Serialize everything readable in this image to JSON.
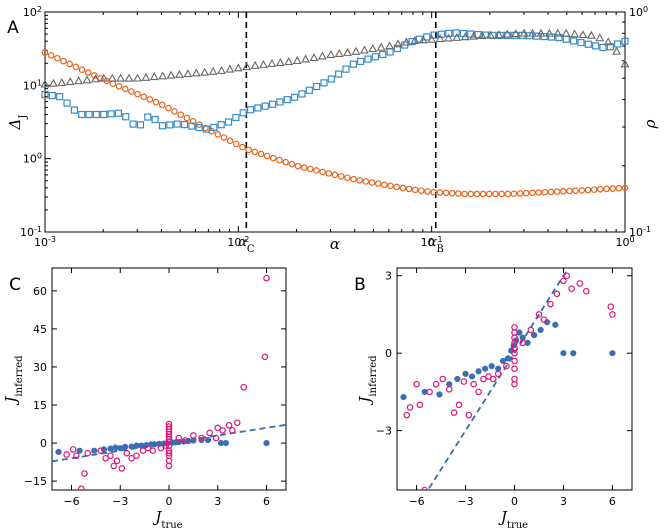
{
  "chart_data": [
    {
      "id": "A",
      "panel_label": "A",
      "type": "scatter",
      "x_scale": "log",
      "xlim": [
        0.001,
        1
      ],
      "xlabel": "α",
      "x_ticks": [
        {
          "value": 0.001,
          "base": "10",
          "exp": "-3"
        },
        {
          "value": 0.01,
          "base": "10",
          "exp": "-2"
        },
        {
          "value": 0.1,
          "base": "10",
          "exp": "-1"
        },
        {
          "value": 1,
          "base": "10",
          "exp": "0"
        }
      ],
      "y_left": {
        "label": "Δ",
        "label_sub": "J",
        "scale": "log",
        "lim": [
          0.1,
          100
        ],
        "ticks": [
          {
            "value": 0.1,
            "base": "10",
            "exp": "-1"
          },
          {
            "value": 1,
            "base": "10",
            "exp": "0"
          },
          {
            "value": 10,
            "base": "10",
            "exp": "1"
          },
          {
            "value": 100,
            "base": "10",
            "exp": "2"
          }
        ]
      },
      "y_right": {
        "label": "ρ",
        "scale": "log",
        "lim": [
          0.1,
          1
        ],
        "ticks": [
          {
            "value": 0.1,
            "base": "10",
            "exp": "-1"
          },
          {
            "value": 1,
            "base": "10",
            "exp": "0"
          }
        ]
      },
      "vlines": [
        {
          "x": 0.011,
          "label": "α",
          "label_sub": "C"
        },
        {
          "x": 0.105,
          "label": "α",
          "label_sub": "B"
        }
      ],
      "series": [
        {
          "name": "orange circles",
          "marker": "circle",
          "color": "#e8641b",
          "axis": "left",
          "x": [
            0.001,
            0.002,
            0.004,
            0.007,
            0.011,
            0.02,
            0.04,
            0.07,
            0.1,
            0.15,
            0.25,
            0.4,
            0.6,
            1.0
          ],
          "y": [
            28,
            12,
            5.5,
            2.5,
            1.35,
            0.8,
            0.52,
            0.4,
            0.35,
            0.33,
            0.33,
            0.35,
            0.37,
            0.4
          ]
        },
        {
          "name": "blue squares",
          "marker": "square",
          "color": "#3a8cc4",
          "axis": "left",
          "x": [
            0.001,
            0.0012,
            0.0015,
            0.002,
            0.0025,
            0.003,
            0.0035,
            0.004,
            0.005,
            0.007,
            0.009,
            0.011,
            0.015,
            0.02,
            0.03,
            0.04,
            0.06,
            0.08,
            0.1,
            0.13,
            0.2,
            0.3,
            0.45,
            0.6,
            0.8,
            1.0
          ],
          "y": [
            7.5,
            7.0,
            4.0,
            4.0,
            4.2,
            2.6,
            4.0,
            2.8,
            3.0,
            2.5,
            3.2,
            4.5,
            5.5,
            7.0,
            12,
            20,
            28,
            40,
            48,
            52,
            48,
            48,
            45,
            38,
            32,
            40
          ]
        },
        {
          "name": "gray triangles",
          "marker": "triangle",
          "color": "#666666",
          "axis": "right",
          "x": [
            0.001,
            0.0013,
            0.002,
            0.003,
            0.005,
            0.008,
            0.012,
            0.02,
            0.03,
            0.04,
            0.06,
            0.08,
            0.12,
            0.18,
            0.3,
            0.5,
            0.7,
            0.85,
            1.0
          ],
          "y": [
            0.47,
            0.48,
            0.5,
            0.5,
            0.52,
            0.54,
            0.57,
            0.6,
            0.64,
            0.66,
            0.7,
            0.74,
            0.76,
            0.78,
            0.8,
            0.8,
            0.78,
            0.72,
            0.58
          ]
        }
      ]
    },
    {
      "id": "C",
      "panel_label": "C",
      "type": "scatter",
      "xlabel": "J",
      "xlabel_sub": "true",
      "ylabel": "J",
      "ylabel_sub": "inferred",
      "xlim": [
        -7.2,
        7.2
      ],
      "ylim": [
        -18.5,
        69
      ],
      "x_ticks": [
        -6,
        -3,
        0,
        3,
        6
      ],
      "y_ticks": [
        -15,
        0,
        15,
        30,
        45,
        60
      ],
      "fit_line": {
        "slope": 1,
        "intercept": 0,
        "color": "#2f6fb0"
      },
      "series": [
        {
          "name": "filled blue",
          "marker": "filled-circle",
          "color": "#3c6eb4",
          "x": [
            -6.8,
            -5.5,
            -4.6,
            -4.0,
            -3.6,
            -3.3,
            -3.0,
            -2.7,
            -2.3,
            -2.0,
            -1.7,
            -1.4,
            -1.1,
            -0.9,
            -0.6,
            -0.3,
            -0.1,
            0.2,
            0.4,
            0.6,
            0.9,
            1.2,
            1.5,
            2.0,
            2.4,
            3.2,
            3.5,
            6.0
          ],
          "y": [
            -3.5,
            -3.0,
            -3.0,
            -2.5,
            -2.2,
            -1.8,
            -2.0,
            -1.5,
            -1.4,
            -1.0,
            -1.0,
            -0.8,
            -0.5,
            -0.5,
            -0.3,
            -0.2,
            0.0,
            0.2,
            0.3,
            0.4,
            0.6,
            0.8,
            1.0,
            1.2,
            1.2,
            0.0,
            0.0,
            0.0
          ]
        },
        {
          "name": "open magenta",
          "marker": "open-circle",
          "color": "#e0157a",
          "x": [
            -6.3,
            -5.9,
            -5.7,
            -5.4,
            -5.2,
            -5.0,
            -4.2,
            -3.9,
            -3.6,
            -3.4,
            -3.2,
            -2.9,
            -2.6,
            -2.3,
            -2.0,
            -1.6,
            -1.3,
            -1.0,
            -0.5,
            -0.2,
            0.0,
            0.0,
            0.0,
            0.0,
            0.0,
            0.0,
            0.0,
            0.0,
            0.0,
            0.0,
            0.0,
            0.0,
            0.0,
            0.0,
            0.6,
            1.0,
            1.5,
            2.0,
            2.5,
            2.9,
            3.0,
            3.3,
            3.7,
            3.9,
            4.2,
            4.6,
            5.9,
            6.0
          ],
          "y": [
            -4.5,
            -2.5,
            -5.0,
            -18.0,
            -12.0,
            -4.0,
            -3.0,
            -6.0,
            -5.0,
            -9.0,
            -7.0,
            -10.0,
            -4.0,
            -6.0,
            -5.0,
            -3.0,
            -2.0,
            -3.0,
            -2.0,
            -1.0,
            -9.0,
            -7.0,
            -5.0,
            -3.0,
            -1.0,
            0.5,
            1.5,
            2.5,
            3.5,
            4.5,
            5.5,
            6.5,
            7.5,
            -4.0,
            2.0,
            1.0,
            3.0,
            2.0,
            4.0,
            2.0,
            6.0,
            5.0,
            7.0,
            5.0,
            8.0,
            22.0,
            34.0,
            65.0
          ]
        }
      ]
    },
    {
      "id": "B",
      "panel_label": "B",
      "type": "scatter",
      "xlabel": "J",
      "xlabel_sub": "true",
      "ylabel": "J",
      "ylabel_sub": "inferred",
      "xlim": [
        -7.2,
        7.2
      ],
      "ylim": [
        -5.3,
        3.3
      ],
      "x_ticks": [
        -6,
        -3,
        0,
        3,
        6
      ],
      "y_ticks": [
        -3,
        0,
        3
      ],
      "fit_line": {
        "slope": 1,
        "intercept": 0,
        "color": "#2f6fb0"
      },
      "series": [
        {
          "name": "filled blue",
          "marker": "filled-circle",
          "color": "#3c6eb4",
          "x": [
            -6.8,
            -5.5,
            -4.6,
            -4.0,
            -3.5,
            -3.0,
            -2.6,
            -2.2,
            -1.8,
            -1.4,
            -1.0,
            -0.7,
            -0.4,
            -0.2,
            -0.05,
            0.1,
            0.3,
            0.5,
            0.8,
            1.2,
            1.6,
            2.0,
            2.5,
            3.0,
            3.6,
            6.0
          ],
          "y": [
            -1.7,
            -1.5,
            -1.6,
            -1.2,
            -1.0,
            -0.8,
            -0.9,
            -0.7,
            -0.6,
            -0.5,
            -0.6,
            -0.3,
            -0.2,
            0.1,
            0.3,
            0.5,
            0.8,
            0.6,
            0.4,
            0.7,
            0.9,
            1.2,
            1.1,
            0.0,
            0.0,
            0.0
          ]
        },
        {
          "name": "open magenta",
          "marker": "open-circle",
          "color": "#e0157a",
          "x": [
            -6.6,
            -6.4,
            -6.0,
            -5.8,
            -5.5,
            -5.2,
            -4.8,
            -4.4,
            -4.0,
            -3.7,
            -3.4,
            -3.1,
            -2.8,
            -2.5,
            -2.2,
            -1.9,
            -1.6,
            -1.3,
            -1.0,
            -0.5,
            0.0,
            0.0,
            0.0,
            0.0,
            0.0,
            0.0,
            0.0,
            0.0,
            0.0,
            0.0,
            0.5,
            1.0,
            1.5,
            1.8,
            2.2,
            2.6,
            3.0,
            3.2,
            3.5,
            4.0,
            4.4,
            5.9,
            6.0
          ],
          "y": [
            -2.4,
            -2.1,
            -1.2,
            -2.0,
            -5.3,
            -1.5,
            -1.2,
            -1.0,
            -1.4,
            -2.3,
            -2.0,
            -1.1,
            -2.4,
            -1.2,
            -1.5,
            -1.0,
            -0.9,
            -1.0,
            -0.8,
            -0.5,
            -1.2,
            -1.0,
            -0.6,
            -0.3,
            0.0,
            0.2,
            0.4,
            0.6,
            0.8,
            1.0,
            0.4,
            0.9,
            1.5,
            1.3,
            1.9,
            2.3,
            2.8,
            3.0,
            2.5,
            2.7,
            2.4,
            1.8,
            1.5
          ]
        }
      ]
    }
  ]
}
